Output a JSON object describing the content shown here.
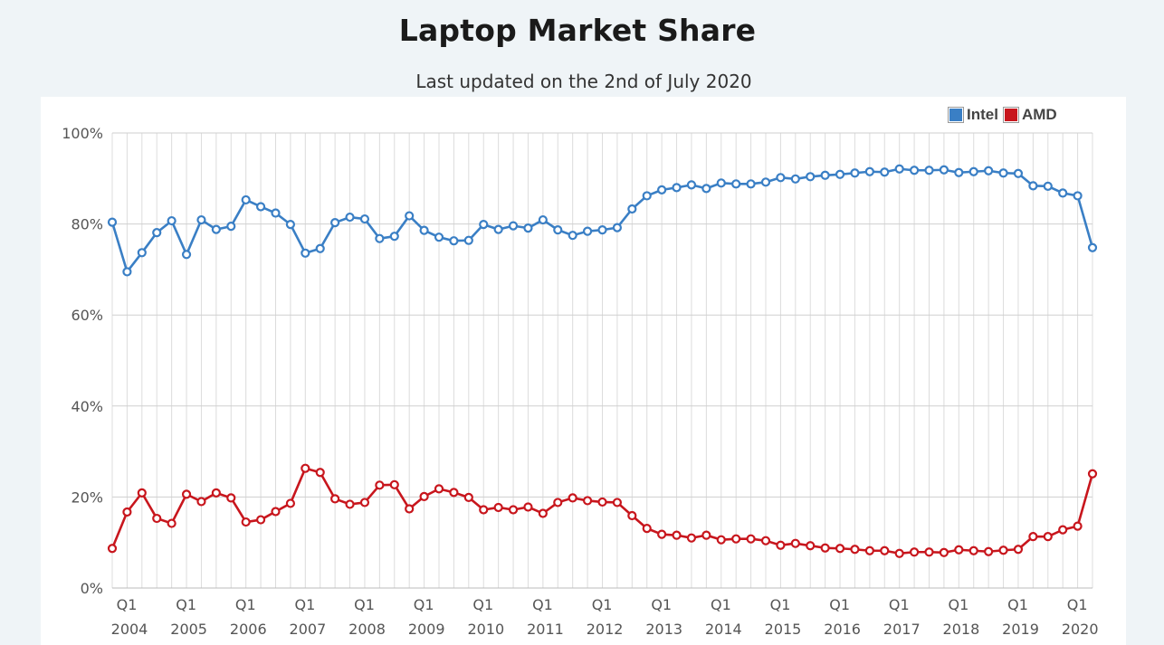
{
  "chart_data": {
    "type": "line",
    "title": "Laptop Market Share",
    "subtitle": "Last updated on the 2nd of July 2020",
    "x": [
      "2004 Q1",
      "2004 Q2",
      "2004 Q3",
      "2004 Q4",
      "2005 Q1",
      "2005 Q2",
      "2005 Q3",
      "2005 Q4",
      "2006 Q1",
      "2006 Q2",
      "2006 Q3",
      "2006 Q4",
      "2007 Q1",
      "2007 Q2",
      "2007 Q3",
      "2007 Q4",
      "2008 Q1",
      "2008 Q2",
      "2008 Q3",
      "2008 Q4",
      "2009 Q1",
      "2009 Q2",
      "2009 Q3",
      "2009 Q4",
      "2010 Q1",
      "2010 Q2",
      "2010 Q3",
      "2010 Q4",
      "2011 Q1",
      "2011 Q2",
      "2011 Q3",
      "2011 Q4",
      "2012 Q1",
      "2012 Q2",
      "2012 Q3",
      "2012 Q4",
      "2013 Q1",
      "2013 Q2",
      "2013 Q3",
      "2013 Q4",
      "2014 Q1",
      "2014 Q2",
      "2014 Q3",
      "2014 Q4",
      "2015 Q1",
      "2015 Q2",
      "2015 Q3",
      "2015 Q4",
      "2016 Q1",
      "2016 Q2",
      "2016 Q3",
      "2016 Q4",
      "2017 Q1",
      "2017 Q2",
      "2017 Q3",
      "2017 Q4",
      "2018 Q1",
      "2018 Q2",
      "2018 Q3",
      "2018 Q4",
      "2019 Q1",
      "2019 Q2",
      "2019 Q3",
      "2019 Q4",
      "2020 Q1",
      "2020 Q2",
      "2020 Q3"
    ],
    "series": [
      {
        "name": "Intel",
        "color": "#3a7fc5",
        "values": [
          80.4,
          69.5,
          73.7,
          78.1,
          80.7,
          73.3,
          80.9,
          78.8,
          79.5,
          85.3,
          83.8,
          82.4,
          79.9,
          73.6,
          74.6,
          80.3,
          81.5,
          81.1,
          76.8,
          77.3,
          81.8,
          78.6,
          77.1,
          76.3,
          76.4,
          79.9,
          78.8,
          79.6,
          79.1,
          80.9,
          78.7,
          77.5,
          78.4,
          78.7,
          79.2,
          83.3,
          86.2,
          87.5,
          88.0,
          88.6,
          87.8,
          89.0,
          88.8,
          88.8,
          89.2,
          90.2,
          89.9,
          90.4,
          90.7,
          90.9,
          91.2,
          91.5,
          91.4,
          92.1,
          91.8,
          91.8,
          91.9,
          91.3,
          91.5,
          91.7,
          91.2,
          91.1,
          88.4,
          88.3,
          86.8,
          86.2,
          74.8
        ]
      },
      {
        "name": "AMD",
        "color": "#c8161d",
        "values": [
          8.7,
          16.7,
          20.9,
          15.3,
          14.2,
          20.6,
          19.0,
          20.9,
          19.8,
          14.5,
          15.0,
          16.8,
          18.6,
          26.3,
          25.4,
          19.6,
          18.4,
          18.8,
          22.6,
          22.7,
          17.4,
          20.1,
          21.8,
          21.0,
          19.9,
          17.2,
          17.7,
          17.2,
          17.8,
          16.4,
          18.8,
          19.8,
          19.2,
          18.9,
          18.8,
          15.9,
          13.1,
          11.8,
          11.6,
          11.0,
          11.6,
          10.6,
          10.8,
          10.8,
          10.4,
          9.4,
          9.8,
          9.3,
          8.8,
          8.7,
          8.5,
          8.2,
          8.2,
          7.6,
          7.9,
          7.9,
          7.8,
          8.4,
          8.2,
          8.0,
          8.3,
          8.5,
          11.3,
          11.3,
          12.8,
          13.6,
          25.1
        ]
      }
    ],
    "y_ticks": [
      "0%",
      "20%",
      "40%",
      "60%",
      "80%",
      "100%"
    ],
    "x_tick_quarter_label": "Q1",
    "x_tick_years": [
      "2004",
      "2005",
      "2006",
      "2007",
      "2008",
      "2009",
      "2010",
      "2011",
      "2012",
      "2013",
      "2014",
      "2015",
      "2016",
      "2017",
      "2018",
      "2019",
      "2020"
    ],
    "xlabel": "",
    "ylabel": "",
    "ylim": [
      0,
      100
    ],
    "grid": true,
    "legend_position": "top-right"
  }
}
